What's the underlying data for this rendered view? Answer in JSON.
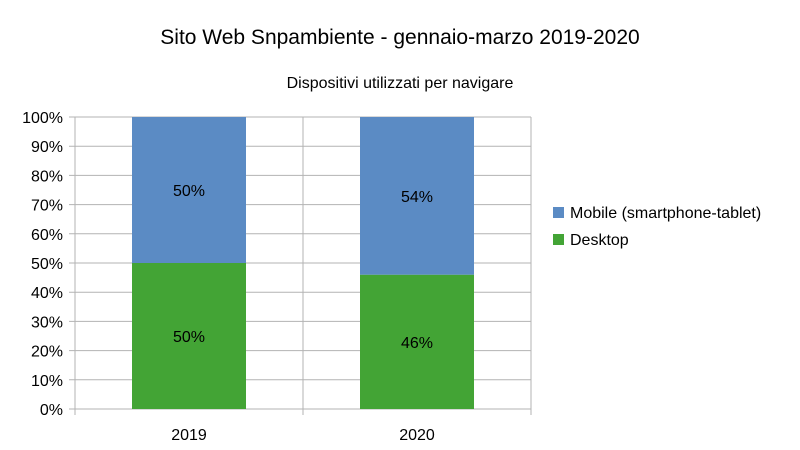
{
  "chart_data": {
    "type": "bar",
    "stacked": true,
    "percent": true,
    "title": "Sito Web Snpambiente - gennaio-marzo 2019-2020",
    "subtitle": "Dispositivi utilizzati per navigare",
    "xlabel": "",
    "ylabel": "",
    "categories": [
      "2019",
      "2020"
    ],
    "ylim": [
      0,
      100
    ],
    "yticks": [
      "0%",
      "10%",
      "20%",
      "30%",
      "40%",
      "50%",
      "60%",
      "70%",
      "80%",
      "90%",
      "100%"
    ],
    "series": [
      {
        "name": "Desktop",
        "values": [
          50,
          46
        ],
        "labels": [
          "50%",
          "46%"
        ],
        "color": "#43a435"
      },
      {
        "name": "Mobile (smartphone-tablet)",
        "values": [
          50,
          54
        ],
        "labels": [
          "50%",
          "54%"
        ],
        "color": "#5b8bc4"
      }
    ],
    "legend": {
      "placement": "right",
      "entries": [
        "Mobile (smartphone-tablet)",
        "Desktop"
      ]
    },
    "grid": {
      "y": true,
      "color": "#b3b3b3"
    }
  }
}
